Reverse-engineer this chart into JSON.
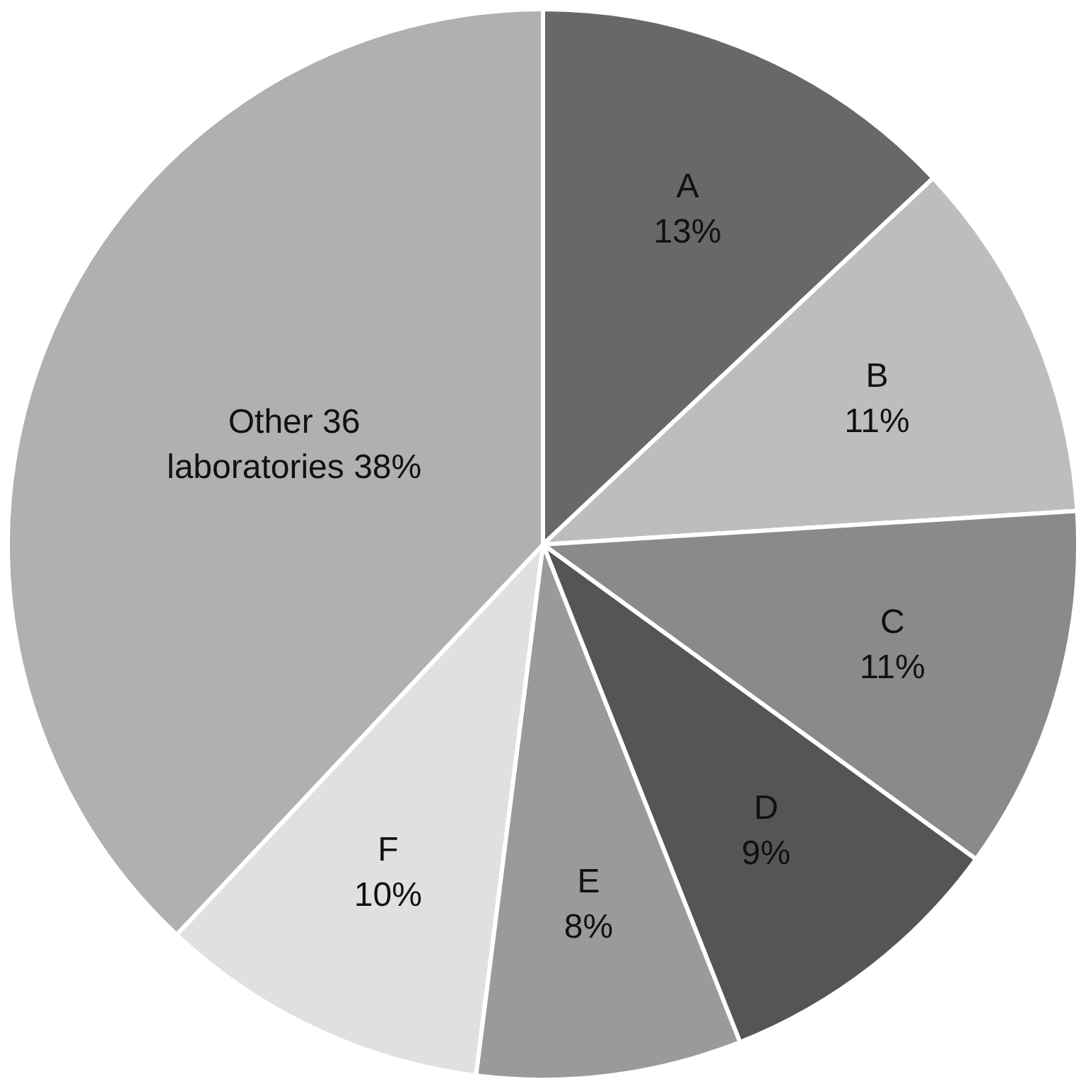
{
  "chart_data": {
    "type": "pie",
    "categories": [
      "A",
      "B",
      "C",
      "D",
      "E",
      "F",
      "Other 36 laboratories"
    ],
    "values": [
      13,
      11,
      11,
      9,
      8,
      10,
      38
    ],
    "value_labels": [
      "13%",
      "11%",
      "11%",
      "9%",
      "8%",
      "10%",
      "38%"
    ],
    "colors": [
      "#686868",
      "#bdbdbd",
      "#8a8a8a",
      "#555555",
      "#9a9a9a",
      "#e0e0e0",
      "#b0b0b0"
    ],
    "legend": false
  }
}
